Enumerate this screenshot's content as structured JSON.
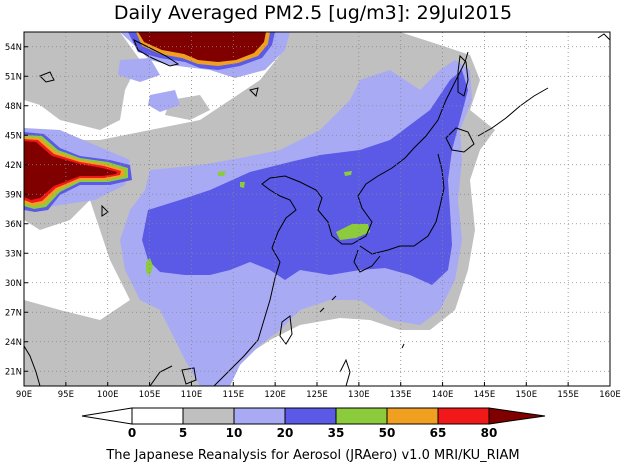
{
  "title": "Daily Averaged PM2.5 [ug/m3]: 29Jul2015",
  "footer": "The Japanese Reanalysis for Aerosol (JRAero) v1.0 MRI/KU_RIAM",
  "map": {
    "lon_range": [
      90,
      160
    ],
    "lat_range": [
      19.5,
      55.5
    ],
    "lon_ticks": [
      "90E",
      "95E",
      "100E",
      "105E",
      "110E",
      "115E",
      "120E",
      "125E",
      "130E",
      "135E",
      "140E",
      "145E",
      "150E",
      "155E",
      "160E"
    ],
    "lat_ticks": [
      "54N",
      "51N",
      "48N",
      "45N",
      "42N",
      "39N",
      "36N",
      "33N",
      "30N",
      "27N",
      "24N",
      "21N"
    ],
    "grid": true
  },
  "colorbar": {
    "labels": [
      "0",
      "5",
      "10",
      "20",
      "35",
      "50",
      "65",
      "80"
    ],
    "colors": {
      "lt0": "#ffffff",
      "b0_5": "#ffffff",
      "b5_10": "#c0c0c0",
      "b10_20": "#a9aaf4",
      "b20_35": "#5a5ae6",
      "b35_50": "#8ccc3c",
      "b50_65": "#f0a020",
      "b65_80": "#f01818",
      "gt80": "#800000"
    }
  }
}
